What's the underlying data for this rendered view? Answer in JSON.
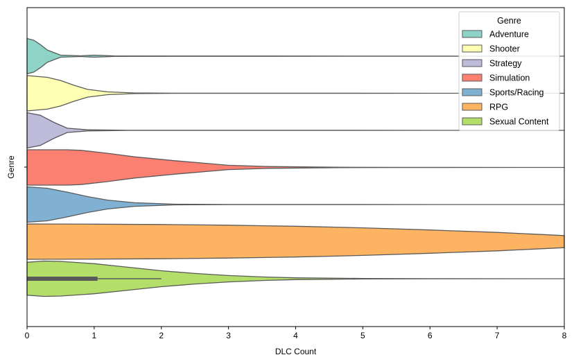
{
  "chart_data": {
    "type": "violin",
    "orientation": "horizontal",
    "xlabel": "DLC Count",
    "ylabel": "Genre",
    "xlim": [
      0,
      8
    ],
    "xticks": [
      "0",
      "1",
      "2",
      "3",
      "4",
      "5",
      "6",
      "7",
      "8"
    ],
    "legend": {
      "title": "Genre",
      "position": "top-right"
    },
    "series": [
      {
        "name": "Adventure",
        "color": "#8dd3c7",
        "density": [
          [
            0,
            1.0
          ],
          [
            0.1,
            0.9
          ],
          [
            0.2,
            0.65
          ],
          [
            0.3,
            0.35
          ],
          [
            0.5,
            0.06
          ],
          [
            0.8,
            0.02
          ],
          [
            1.0,
            0.06
          ],
          [
            1.3,
            0.01
          ],
          [
            8,
            0.0
          ]
        ]
      },
      {
        "name": "Shooter",
        "color": "#ffffb3",
        "density": [
          [
            0,
            1.0
          ],
          [
            0.3,
            0.9
          ],
          [
            0.5,
            0.72
          ],
          [
            0.7,
            0.45
          ],
          [
            0.9,
            0.22
          ],
          [
            1.2,
            0.08
          ],
          [
            1.6,
            0.02
          ],
          [
            2.2,
            0.005
          ],
          [
            8,
            0.0
          ]
        ]
      },
      {
        "name": "Strategy",
        "color": "#bebada",
        "density": [
          [
            0,
            1.0
          ],
          [
            0.2,
            0.85
          ],
          [
            0.4,
            0.45
          ],
          [
            0.6,
            0.12
          ],
          [
            0.9,
            0.03
          ],
          [
            1.5,
            0.005
          ],
          [
            8,
            0.0
          ]
        ]
      },
      {
        "name": "Simulation",
        "color": "#fb8072",
        "density": [
          [
            0,
            1.0
          ],
          [
            0.6,
            1.0
          ],
          [
            0.8,
            0.97
          ],
          [
            1.2,
            0.8
          ],
          [
            1.6,
            0.6
          ],
          [
            2.2,
            0.38
          ],
          [
            3.0,
            0.12
          ],
          [
            3.6,
            0.05
          ],
          [
            4.6,
            0.01
          ],
          [
            5.5,
            0.003
          ],
          [
            8,
            0.0
          ]
        ]
      },
      {
        "name": "Sports/Racing",
        "color": "#80b1d3",
        "density": [
          [
            0,
            1.0
          ],
          [
            0.3,
            0.92
          ],
          [
            0.6,
            0.7
          ],
          [
            0.9,
            0.45
          ],
          [
            1.2,
            0.25
          ],
          [
            1.6,
            0.1
          ],
          [
            2.2,
            0.02
          ],
          [
            3.0,
            0.005
          ],
          [
            8,
            0.0
          ]
        ]
      },
      {
        "name": "RPG",
        "color": "#fdb462",
        "density": [
          [
            0,
            1.0
          ],
          [
            1.0,
            0.99
          ],
          [
            2.0,
            0.97
          ],
          [
            3.0,
            0.93
          ],
          [
            4.0,
            0.87
          ],
          [
            5.0,
            0.78
          ],
          [
            6.0,
            0.66
          ],
          [
            7.0,
            0.52
          ],
          [
            8.0,
            0.34
          ]
        ]
      },
      {
        "name": "Sexual Content",
        "color": "#b3de69",
        "density": [
          [
            0,
            0.93
          ],
          [
            0.25,
            1.0
          ],
          [
            0.5,
            0.98
          ],
          [
            1.0,
            0.85
          ],
          [
            1.5,
            0.65
          ],
          [
            2.0,
            0.45
          ],
          [
            2.5,
            0.3
          ],
          [
            3.0,
            0.18
          ],
          [
            3.5,
            0.1
          ],
          [
            4.0,
            0.05
          ],
          [
            5.0,
            0.015
          ],
          [
            6.0,
            0.003
          ],
          [
            8.0,
            0.0
          ]
        ],
        "box": {
          "q1": 0,
          "q3": 1.05,
          "whisker_high": 2.0
        }
      }
    ]
  }
}
